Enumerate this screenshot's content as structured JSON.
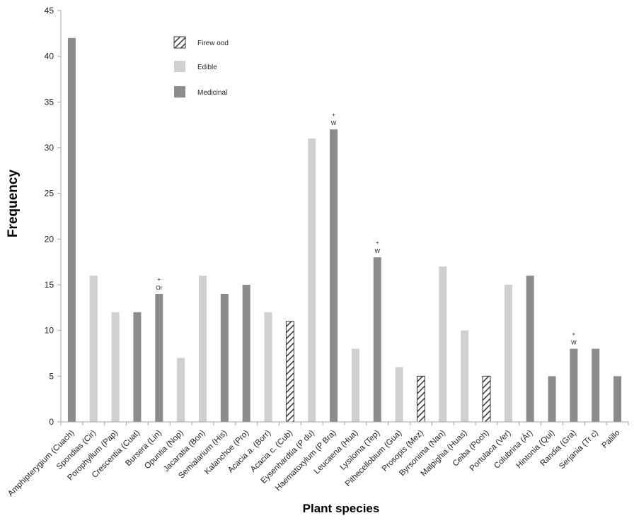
{
  "chart_data": {
    "type": "bar",
    "title": "",
    "xlabel": "Plant species",
    "ylabel": "Frequency",
    "ylim": [
      0,
      45
    ],
    "yticks": [
      0,
      5,
      10,
      15,
      20,
      25,
      30,
      35,
      40,
      45
    ],
    "grid": false,
    "legend_placement": "top-left",
    "use_types": [
      {
        "key": "fw",
        "name": "Firew ood",
        "color": "#3a3a3a",
        "pattern": "diagonal-hatch"
      },
      {
        "key": "ed",
        "name": "Edible",
        "color": "#d0d0d0",
        "pattern": "solid"
      },
      {
        "key": "md",
        "name": "Medicinal",
        "color": "#8c8c8c",
        "pattern": "solid"
      }
    ],
    "bars": [
      {
        "category": "Amphipterygium (Cuach)",
        "value": 42,
        "type": "md",
        "annotation": ""
      },
      {
        "category": "Spondias (Cir)",
        "value": 16,
        "type": "ed",
        "annotation": ""
      },
      {
        "category": "Porophyllum (Pap)",
        "value": 12,
        "type": "ed",
        "annotation": ""
      },
      {
        "category": "Crescentia (Cuat)",
        "value": 12,
        "type": "md",
        "annotation": ""
      },
      {
        "category": "Bursera (Lin)",
        "value": 14,
        "type": "md",
        "annotation": "Or"
      },
      {
        "category": "Opuntia (Nop)",
        "value": 7,
        "type": "ed",
        "annotation": ""
      },
      {
        "category": "Jacaratia (Bon)",
        "value": 16,
        "type": "ed",
        "annotation": ""
      },
      {
        "category": "Semialarium (His)",
        "value": 14,
        "type": "md",
        "annotation": ""
      },
      {
        "category": "Kalanchoe (Pro)",
        "value": 15,
        "type": "md",
        "annotation": ""
      },
      {
        "category": "Acacia a. (Borr)",
        "value": 12,
        "type": "ed",
        "annotation": ""
      },
      {
        "category": "Acacia c. (Cub)",
        "value": 11,
        "type": "fw",
        "annotation": ""
      },
      {
        "category": "Eysenhardtia (P du)",
        "value": 31,
        "type": "ed",
        "annotation": ""
      },
      {
        "category": "Haematoxylum (P Bra)",
        "value": 32,
        "type": "md",
        "annotation": "W"
      },
      {
        "category": "Leucaena (Hua)",
        "value": 8,
        "type": "ed",
        "annotation": ""
      },
      {
        "category": "Lysiloma (Tep)",
        "value": 18,
        "type": "md",
        "annotation": "W"
      },
      {
        "category": "Pithecellobium (Gua)",
        "value": 6,
        "type": "ed",
        "annotation": ""
      },
      {
        "category": "Prosopis (Mez)",
        "value": 5,
        "type": "fw",
        "annotation": ""
      },
      {
        "category": "Byrsonima (Nan)",
        "value": 17,
        "type": "ed",
        "annotation": ""
      },
      {
        "category": "Malpighia (Huas)",
        "value": 10,
        "type": "ed",
        "annotation": ""
      },
      {
        "category": "Ceiba (Poch)",
        "value": 5,
        "type": "fw",
        "annotation": ""
      },
      {
        "category": "Portulaca (Ver)",
        "value": 15,
        "type": "ed",
        "annotation": ""
      },
      {
        "category": "Colubrina (Ár)",
        "value": 16,
        "type": "md",
        "annotation": ""
      },
      {
        "category": "Hintonia (Qui)",
        "value": 5,
        "type": "md",
        "annotation": ""
      },
      {
        "category": "Randia (Gra)",
        "value": 8,
        "type": "md",
        "annotation": "W"
      },
      {
        "category": "Serjania (Tr c)",
        "value": 8,
        "type": "md",
        "annotation": ""
      },
      {
        "category": "Palillo",
        "value": 5,
        "type": "md",
        "annotation": ""
      }
    ],
    "annotation_marker": "+"
  }
}
